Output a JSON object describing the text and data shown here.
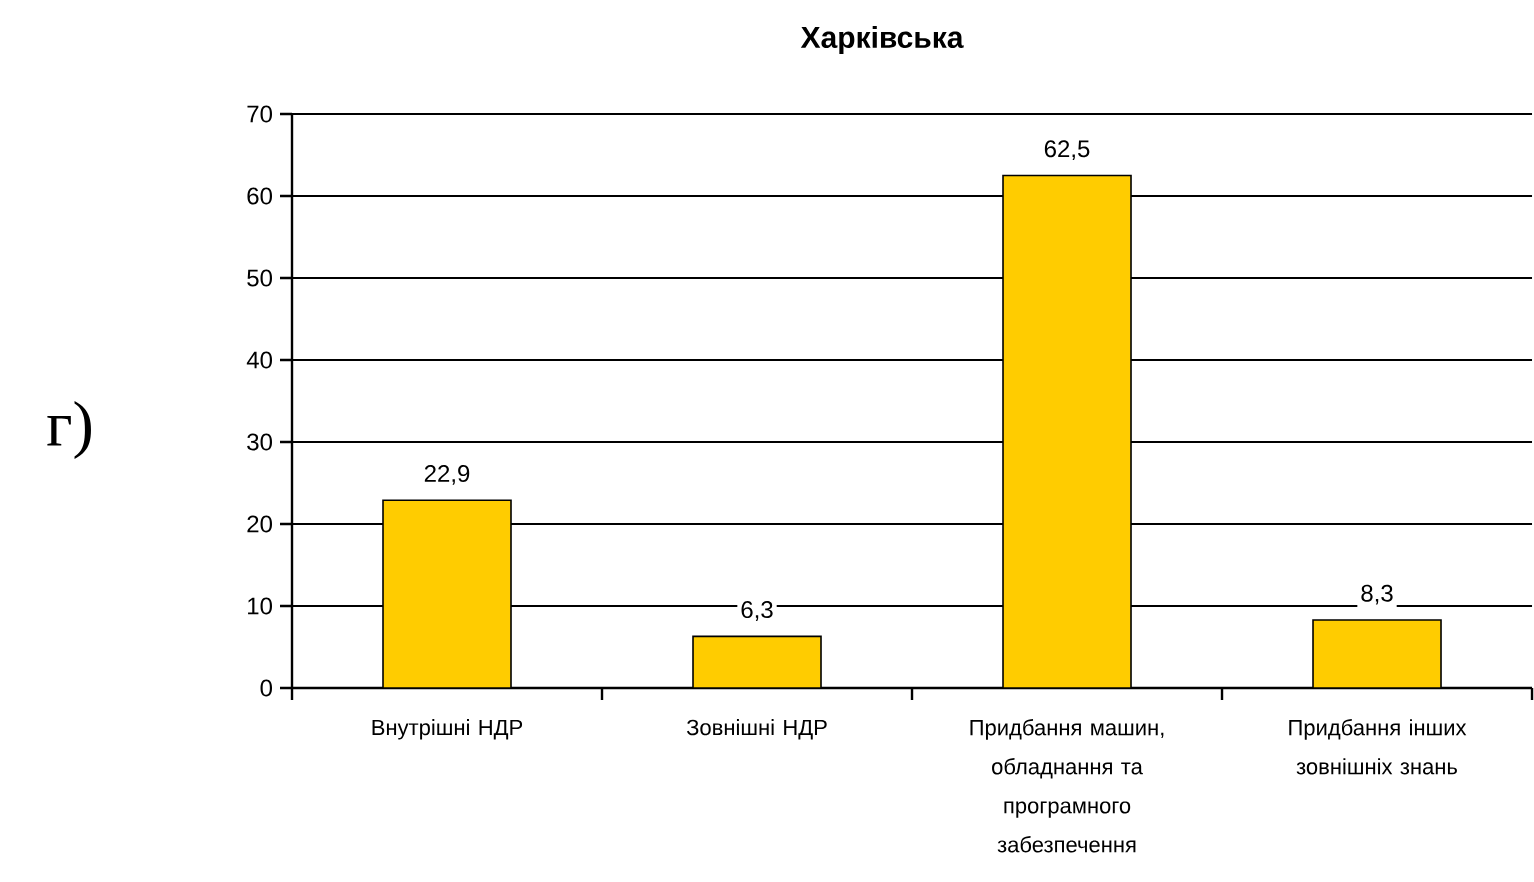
{
  "chart_data": {
    "type": "bar",
    "title": "Харківська",
    "categories": [
      "Внутрішні НДР",
      "Зовнішні НДР",
      "Придбання машин, обладнання та програмного забезпечення",
      "Придбання інших зовнішніх знань"
    ],
    "values": [
      22.9,
      6.3,
      62.5,
      8.3
    ],
    "value_labels": [
      "22,9",
      "6,3",
      "62,5",
      "8,3"
    ],
    "color": "#ffcc00",
    "ylim": [
      0,
      70
    ],
    "yticks": [
      0,
      10,
      20,
      30,
      40,
      50,
      60,
      70
    ],
    "grid": "y",
    "annotations": [
      "г)"
    ]
  }
}
